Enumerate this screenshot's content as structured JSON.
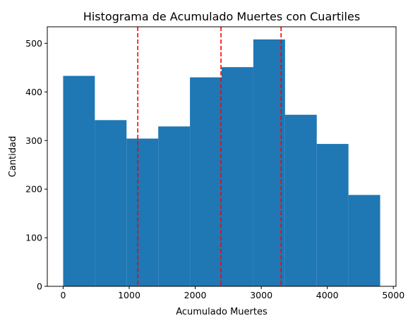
{
  "chart_data": {
    "type": "bar",
    "title": "Histograma de Acumulado Muertes con Cuartiles",
    "xlabel": "Acumulado Muertes",
    "ylabel": "Cantidad",
    "xlim": [
      -240,
      5040
    ],
    "ylim": [
      0,
      534
    ],
    "bins": [
      {
        "start": 0,
        "end": 480,
        "count": 433
      },
      {
        "start": 480,
        "end": 960,
        "count": 342
      },
      {
        "start": 960,
        "end": 1440,
        "count": 304
      },
      {
        "start": 1440,
        "end": 1920,
        "count": 329
      },
      {
        "start": 1920,
        "end": 2400,
        "count": 430
      },
      {
        "start": 2400,
        "end": 2880,
        "count": 451
      },
      {
        "start": 2880,
        "end": 3360,
        "count": 508
      },
      {
        "start": 3360,
        "end": 3840,
        "count": 353
      },
      {
        "start": 3840,
        "end": 4320,
        "count": 293
      },
      {
        "start": 4320,
        "end": 4800,
        "count": 188
      }
    ],
    "quartiles": [
      1130,
      2390,
      3300
    ],
    "x_ticks": [
      0,
      1000,
      2000,
      3000,
      4000,
      5000
    ],
    "y_ticks": [
      0,
      100,
      200,
      300,
      400,
      500
    ],
    "bar_color": "#1f77b4",
    "quartile_color": "#ff0000",
    "grid": false,
    "legend": "none"
  }
}
